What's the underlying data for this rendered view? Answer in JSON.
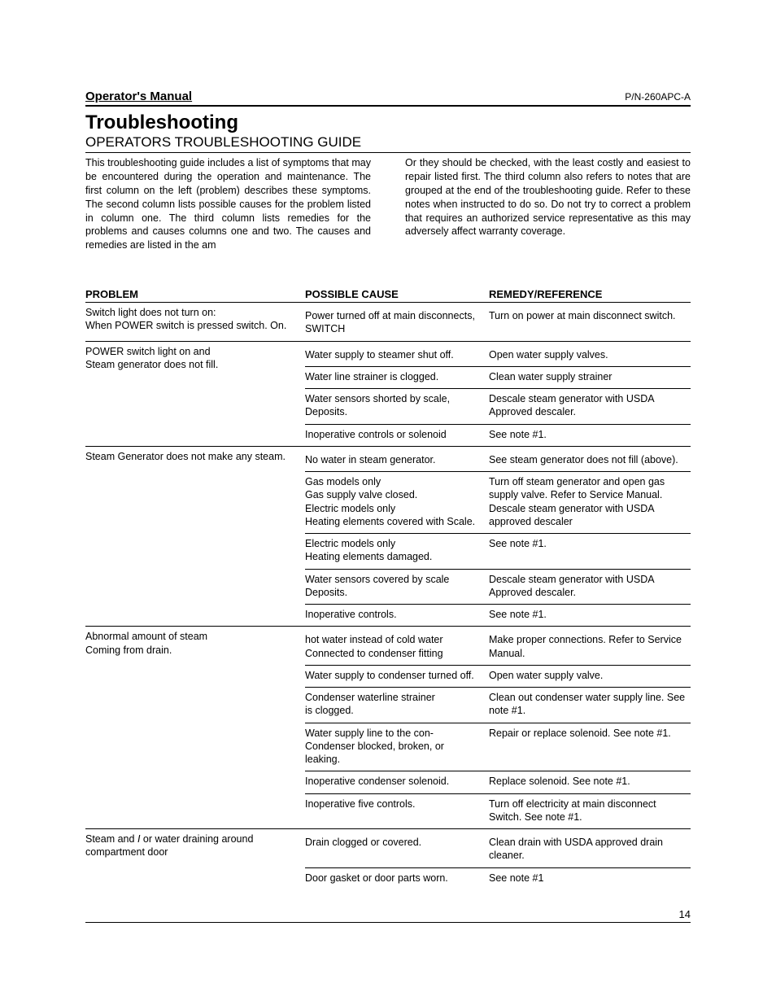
{
  "header": {
    "left": "Operator's Manual",
    "right": "P/N-260APC-A"
  },
  "title": "Troubleshooting",
  "subtitle": "OPERATORS TROUBLESHOOTING GUIDE",
  "intro": {
    "left": "This troubleshooting guide includes a list of symptoms that may be encountered during the operation and maintenance. The first column on the left (problem) describes these symptoms. The second column lists possible causes for the problem listed in column one. The third column lists remedies for the problems and causes columns one and two. The causes and remedies are listed in the am",
    "right": "Or they should be checked, with the least costly and easiest to repair listed first. The third column also refers to notes that are grouped at the end of the troubleshooting guide. Refer to these notes when instructed to do so. Do not try to correct a problem that requires an authorized service representative as this may adversely affect warranty coverage."
  },
  "columns": {
    "problem": "PROBLEM",
    "cause": "POSSIBLE CAUSE",
    "remedy": "REMEDY/REFERENCE"
  },
  "rows": [
    {
      "problem": "Switch light does not turn on:\nWhen POWER switch is pressed switch. On.",
      "causes": [
        {
          "cause": "Power turned off at main disconnects, SWITCH",
          "remedy": "Turn on power at main disconnect switch."
        }
      ]
    },
    {
      "problem": "POWER switch light on and\nSteam generator does not fill.",
      "causes": [
        {
          "cause": "Water supply to steamer shut off.",
          "remedy": "Open water supply valves."
        },
        {
          "cause": "Water line strainer is clogged.",
          "remedy": "Clean water supply strainer"
        },
        {
          "cause": "Water sensors shorted by scale, Deposits.",
          "remedy": "Descale steam generator with USDA Approved descaler."
        },
        {
          "cause": "Inoperative controls or solenoid",
          "remedy": "See note #1."
        }
      ]
    },
    {
      "problem": "Steam Generator does not make any steam.",
      "causes": [
        {
          "cause": "No water in steam generator.",
          "remedy": "See steam generator does not fill (above)."
        },
        {
          "cause": "Gas models only\nGas supply valve closed.\nElectric models only\nHeating elements covered with Scale.",
          "remedy": "Turn off steam generator and open gas supply valve. Refer to Service Manual. Descale steam generator with USDA approved descaler"
        },
        {
          "cause": "Electric models only\nHeating elements damaged.",
          "remedy": "See note #1."
        },
        {
          "cause": "Water sensors covered by scale Deposits.",
          "remedy": " Descale steam generator with USDA Approved descaler."
        },
        {
          "cause": "Inoperative controls.",
          "remedy": "See note #1."
        }
      ]
    },
    {
      "problem": "Abnormal amount of steam\nComing from drain.",
      "causes": [
        {
          "cause": "hot water instead of cold water Connected to condenser fitting",
          "remedy": "Make proper connections. Refer to Service Manual."
        },
        {
          "cause": "Water supply to condenser turned off.",
          "remedy": "Open water supply valve."
        },
        {
          "cause": "Condenser waterline strainer\nis clogged.",
          "remedy": "Clean out condenser water supply line. See note #1."
        },
        {
          "cause": "Water supply line to the con- Condenser blocked, broken, or leaking.",
          "remedy": "Repair or replace solenoid. See note #1."
        },
        {
          "cause": "Inoperative condenser solenoid.",
          "remedy": "Replace solenoid. See note #1."
        },
        {
          "cause": "Inoperative five controls.",
          "remedy": "Turn off electricity at main disconnect Switch.       See note #1."
        }
      ]
    },
    {
      "problem_html": "Steam and <span class=\"italic\">I</span> or water draining around compartment door",
      "causes": [
        {
          "cause": "Drain clogged or covered.",
          "remedy": "Clean drain with USDA approved drain cleaner."
        },
        {
          "cause": "Door gasket or door parts worn.",
          "remedy": "See note #1"
        }
      ]
    }
  ],
  "page_number": "14"
}
